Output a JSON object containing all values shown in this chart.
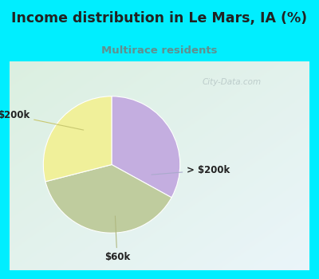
{
  "title": "Income distribution in Le Mars, IA (%)",
  "subtitle": "Multirace residents",
  "title_color": "#222222",
  "subtitle_color": "#5f9090",
  "bg_cyan": "#00eeff",
  "chart_bg": "#e8f5ee",
  "slices": [
    {
      "label": "> $200k",
      "value": 33,
      "color": "#c4aee0"
    },
    {
      "label": "$60k",
      "value": 38,
      "color": "#bfcc9e"
    },
    {
      "label": "$200k",
      "value": 29,
      "color": "#f0f09a"
    }
  ],
  "watermark": "City-Data.com",
  "watermark_color": "#b0c0c0",
  "figsize": [
    4.0,
    3.5
  ],
  "dpi": 100
}
